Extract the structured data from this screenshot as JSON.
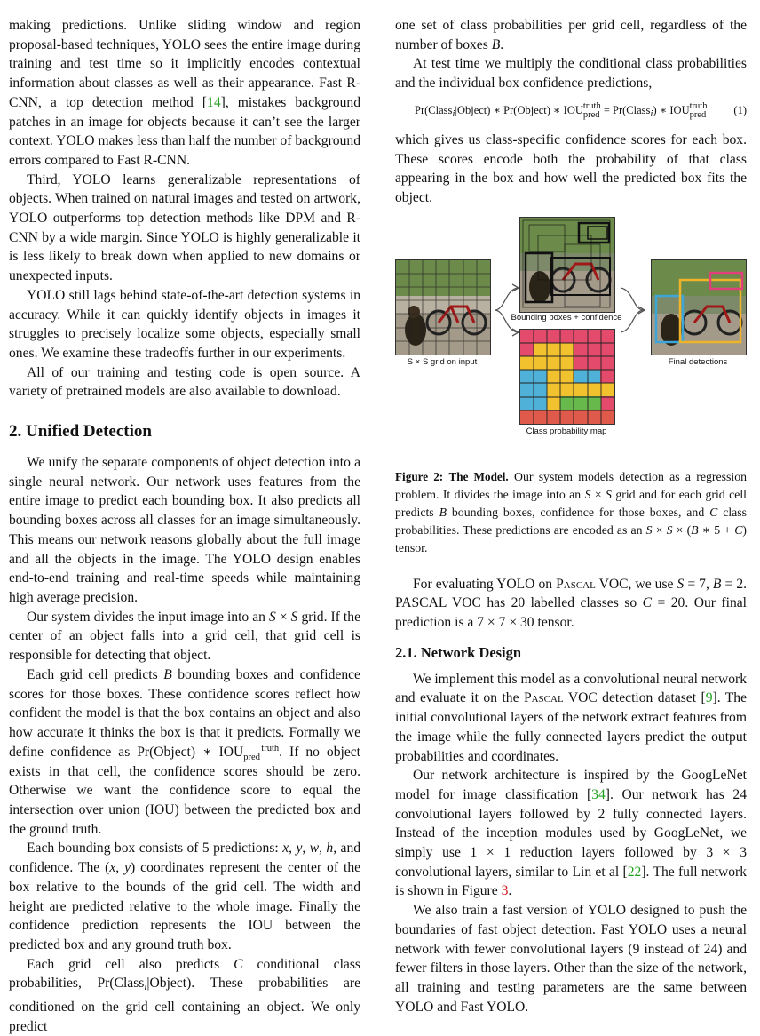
{
  "left": {
    "p1": "making predictions. Unlike sliding window and region proposal-based techniques, YOLO sees the entire image during training and test time so it implicitly encodes contextual information about classes as well as their appearance. Fast R-CNN, a top detection method [",
    "p1_cite": "14",
    "p1_rest": "], mistakes background patches in an image for objects because it can’t see the larger context. YOLO makes less than half the number of background errors compared to Fast R-CNN.",
    "p2": "Third, YOLO learns generalizable representations of objects. When trained on natural images and tested on artwork, YOLO outperforms top detection methods like DPM and R-CNN by a wide margin. Since YOLO is highly generalizable it is less likely to break down when applied to new domains or unexpected inputs.",
    "p3": "YOLO still lags behind state-of-the-art detection systems in accuracy. While it can quickly identify objects in images it struggles to precisely localize some objects, especially small ones. We examine these tradeoffs further in our experiments.",
    "p4": "All of our training and testing code is open source. A variety of pretrained models are also available to download.",
    "h2": "2. Unified Detection",
    "p5": "We unify the separate components of object detection into a single neural network. Our network uses features from the entire image to predict each bounding box. It also predicts all bounding boxes across all classes for an image simultaneously. This means our network reasons globally about the full image and all the objects in the image. The YOLO design enables end-to-end training and real-time speeds while maintaining high average precision.",
    "p6a": "Our system divides the input image into an",
    "p6b": "grid. If the center of an object falls into a grid cell, that grid cell is responsible for detecting that object.",
    "p7a": "Each grid cell predicts",
    "p7b": "bounding boxes and confidence scores for those boxes. These confidence scores reflect how confident the model is that the box contains an object and also how accurate it thinks the box is that it predicts. Formally we define confidence as",
    "p7c": ". If no object exists in that cell, the confidence scores should be zero. Otherwise we want the confidence score to equal the intersection over union (IOU) between the predicted box and the ground truth.",
    "p8a": "Each bounding box consists of 5 predictions:",
    "p8b": "and confidence. The",
    "p8c": "coordinates represent the center of the box relative to the bounds of the grid cell. The width and height are predicted relative to the whole image. Finally the confidence prediction represents the IOU between the predicted box and any ground truth box.",
    "p9a": "Each grid cell also predicts",
    "p9b": "conditional class probabilities,",
    "p9c": ". These probabilities are conditioned on the grid cell containing an object. We only predict"
  },
  "right": {
    "p1": "one set of class probabilities per grid cell, regardless of the number of boxes",
    "p2": "At test time we multiply the conditional class probabilities and the individual box confidence predictions,",
    "eq_number": "(1)",
    "p3": "which gives us class-specific confidence scores for each box. These scores encode both the probability of that class appearing in the box and how well the predicted box fits the object.",
    "fig_labels": {
      "input": "S × S grid on input",
      "boxes": "Bounding boxes + confidence",
      "probmap": "Class probability map",
      "final": "Final detections"
    },
    "caption_label": "Figure 2:",
    "caption_title": "The Model.",
    "caption_a": "Our system models detection as a regression problem. It divides the image into an",
    "caption_b": "grid and for each grid cell predicts",
    "caption_c": "bounding boxes, confidence for those boxes, and",
    "caption_d": "class probabilities. These predictions are encoded as an",
    "caption_e": "tensor.",
    "p4a": "For evaluating YOLO on",
    "p4b": "VOC, we use",
    "p4c": ". PASCAL VOC has 20 labelled classes so",
    "p4d": ". Our final prediction is a 7 × 7 × 30 tensor.",
    "h3": "2.1. Network Design",
    "p5a": "We implement this model as a convolutional neural network and evaluate it on the",
    "p5b": "VOC detection dataset [",
    "p5_cite": "9",
    "p5c": "]. The initial convolutional layers of the network extract features from the image while the fully connected layers predict the output probabilities and coordinates.",
    "p6a": "Our network architecture is inspired by the GoogLeNet model for image classification [",
    "p6_cite1": "34",
    "p6b": "]. Our network has 24 convolutional layers followed by 2 fully connected layers. Instead of the inception modules used by GoogLeNet, we simply use 1 × 1 reduction layers followed by 3 × 3 convolutional layers, similar to Lin et al [",
    "p6_cite2": "22",
    "p6c": "]. The full network is shown in Figure",
    "p6_fig": "3",
    "p7": "We also train a fast version of YOLO designed to push the boundaries of fast object detection. Fast YOLO uses a neural network with fewer convolutional layers (9 instead of 24) and fewer filters in those layers. Other than the size of the network, all training and testing parameters are the same between YOLO and Fast YOLO."
  },
  "colors": {
    "citation": "#21a121",
    "figref": "#d21919"
  }
}
